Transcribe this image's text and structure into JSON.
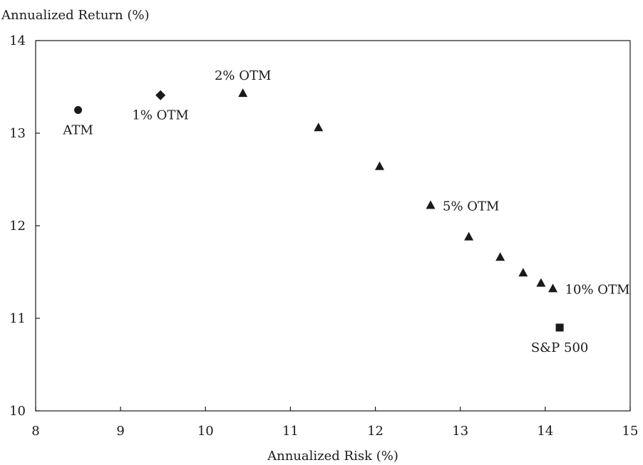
{
  "chart_data": {
    "type": "scatter",
    "title": "",
    "xlabel": "Annualized Risk (%)",
    "ylabel": "Annualized Return (%)",
    "xlim": [
      8,
      15
    ],
    "ylim": [
      10,
      14
    ],
    "xticks": [
      8,
      9,
      10,
      11,
      12,
      13,
      14,
      15
    ],
    "yticks": [
      10,
      11,
      12,
      13,
      14
    ],
    "grid": false,
    "colors": {
      "marker": "#1a1a1a",
      "frame": "#1a1a1a"
    },
    "series": [
      {
        "marker": "circle",
        "points": [
          {
            "x": 8.5,
            "y": 13.25
          }
        ]
      },
      {
        "marker": "diamond",
        "points": [
          {
            "x": 9.47,
            "y": 13.41
          }
        ]
      },
      {
        "marker": "triangle",
        "points": [
          {
            "x": 10.44,
            "y": 13.43
          },
          {
            "x": 11.33,
            "y": 13.06
          },
          {
            "x": 12.05,
            "y": 12.64
          },
          {
            "x": 12.65,
            "y": 12.22
          },
          {
            "x": 13.1,
            "y": 11.88
          },
          {
            "x": 13.47,
            "y": 11.66
          },
          {
            "x": 13.74,
            "y": 11.49
          },
          {
            "x": 13.95,
            "y": 11.38
          },
          {
            "x": 14.09,
            "y": 11.32
          }
        ]
      },
      {
        "marker": "square",
        "points": [
          {
            "x": 14.17,
            "y": 10.9
          }
        ]
      }
    ],
    "annotations": [
      {
        "text": "ATM",
        "x": 8.5,
        "y": 13.25,
        "position": "below"
      },
      {
        "text": "1% OTM",
        "x": 9.47,
        "y": 13.41,
        "position": "below"
      },
      {
        "text": "2% OTM",
        "x": 10.44,
        "y": 13.43,
        "position": "above"
      },
      {
        "text": "5% OTM",
        "x": 12.65,
        "y": 12.22,
        "position": "right"
      },
      {
        "text": "10% OTM",
        "x": 14.09,
        "y": 11.32,
        "position": "right"
      },
      {
        "text": "S&P 500",
        "x": 14.17,
        "y": 10.9,
        "position": "below"
      }
    ]
  }
}
